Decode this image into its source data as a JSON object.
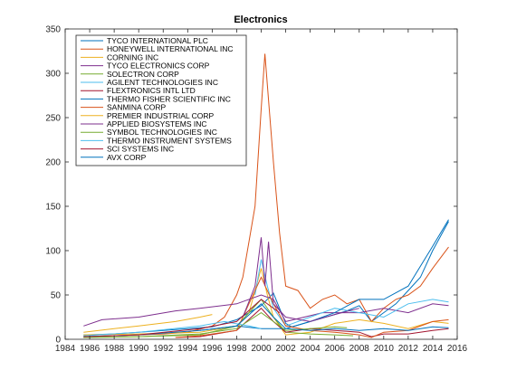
{
  "chart_data": {
    "type": "line",
    "title": "Electronics",
    "xlabel": "",
    "ylabel": "",
    "xlim": [
      1984,
      2016
    ],
    "ylim": [
      0,
      350
    ],
    "xticks": [
      1984,
      1986,
      1988,
      1990,
      1992,
      1994,
      1996,
      1998,
      2000,
      2002,
      2004,
      2006,
      2008,
      2010,
      2012,
      2014,
      2016
    ],
    "yticks": [
      0,
      50,
      100,
      150,
      200,
      250,
      300,
      350
    ],
    "grid": false,
    "legend_position": "top-left",
    "series": [
      {
        "name": "TYCO INTERNATIONAL PLC",
        "color": "#0072bd",
        "x": [
          1985.5,
          1988,
          1990,
          1992,
          1994,
          1996,
          1998,
          1999,
          2000,
          2001,
          2002,
          2002.5,
          2004,
          2006,
          2007,
          2008,
          2009,
          2010,
          2011,
          2012,
          2013,
          2014,
          2015.3
        ],
        "y": [
          5,
          6,
          8,
          10,
          12,
          14,
          22,
          30,
          38,
          52,
          18,
          14,
          20,
          28,
          32,
          38,
          20,
          30,
          40,
          55,
          70,
          100,
          133
        ]
      },
      {
        "name": "HONEYWELL INTERNATIONAL INC",
        "color": "#d95319",
        "x": [
          1985.5,
          1988,
          1990,
          1992,
          1994,
          1996,
          1997,
          1998,
          1998.5,
          1999,
          1999.5,
          2000,
          2000.3,
          2000.6,
          2001,
          2001.5,
          2002,
          2003,
          2004,
          2005,
          2006,
          2007,
          2008,
          2009,
          2010,
          2011,
          2012,
          2013,
          2014,
          2015.3
        ],
        "y": [
          3,
          4,
          5,
          6,
          8,
          15,
          25,
          50,
          70,
          110,
          150,
          260,
          322,
          270,
          200,
          120,
          60,
          55,
          35,
          45,
          50,
          40,
          45,
          20,
          35,
          45,
          50,
          60,
          80,
          104
        ]
      },
      {
        "name": "CORNING INC",
        "color": "#edb120",
        "x": [
          1985.5,
          1990,
          1995,
          1998,
          1999,
          2000,
          2000.5,
          2001,
          2002,
          2004,
          2006,
          2008,
          2010,
          2012,
          2014,
          2015.3
        ],
        "y": [
          5,
          6,
          8,
          15,
          30,
          80,
          50,
          25,
          5,
          8,
          18,
          22,
          18,
          12,
          20,
          18
        ]
      },
      {
        "name": "TYCO ELECTRONICS CORP",
        "color": "#7e2f8e",
        "x": [
          1985.5,
          1987,
          1990,
          1993,
          1995,
          1998,
          2000,
          2001,
          2002,
          2005,
          2008,
          2010,
          2012,
          2014,
          2015.3
        ],
        "y": [
          15,
          22,
          25,
          32,
          35,
          40,
          50,
          45,
          20,
          30,
          30,
          35,
          30,
          40,
          38
        ]
      },
      {
        "name": "SOLECTRON CORP",
        "color": "#77ac30",
        "x": [
          1985.5,
          1990,
          1995,
          1998,
          1999,
          2000,
          2001,
          2002,
          2004,
          2006,
          2007.5
        ],
        "y": [
          2,
          3,
          5,
          15,
          30,
          45,
          25,
          8,
          6,
          5,
          4
        ]
      },
      {
        "name": "AGILENT TECHNOLOGIES INC",
        "color": "#4dbeee",
        "x": [
          1999.5,
          2000,
          2000.5,
          2001,
          2002,
          2004,
          2006,
          2008,
          2010,
          2012,
          2014,
          2015.3
        ],
        "y": [
          50,
          90,
          60,
          35,
          15,
          25,
          35,
          30,
          25,
          40,
          45,
          42
        ]
      },
      {
        "name": "FLEXTRONICS INTL LTD",
        "color": "#a2142f",
        "x": [
          1993,
          1995,
          1998,
          2000,
          2001,
          2002,
          2004,
          2006,
          2008,
          2009,
          2010,
          2012,
          2014,
          2015.3
        ],
        "y": [
          2,
          3,
          10,
          35,
          20,
          8,
          12,
          10,
          8,
          3,
          6,
          6,
          10,
          12
        ]
      },
      {
        "name": "THERMO FISHER SCIENTIFIC INC",
        "color": "#0072bd",
        "x": [
          1985.5,
          1990,
          1995,
          1998,
          2000,
          2002,
          2004,
          2006,
          2008,
          2010,
          2012,
          2014,
          2015.3
        ],
        "y": [
          3,
          5,
          10,
          15,
          12,
          12,
          20,
          30,
          45,
          45,
          60,
          105,
          135
        ]
      },
      {
        "name": "SANMINA CORP",
        "color": "#d95319",
        "x": [
          1993,
          1995,
          1998,
          2000,
          2001,
          2002,
          2004,
          2006,
          2008,
          2009,
          2010,
          2012,
          2014,
          2015.3
        ],
        "y": [
          2,
          4,
          10,
          70,
          40,
          15,
          10,
          8,
          5,
          2,
          8,
          10,
          20,
          22
        ]
      },
      {
        "name": "PREMIER INDUSTRIAL CORP",
        "color": "#edb120",
        "x": [
          1985.5,
          1988,
          1990,
          1993,
          1995,
          1996
        ],
        "y": [
          8,
          12,
          15,
          20,
          25,
          28
        ]
      },
      {
        "name": "APPLIED BIOSYSTEMS INC",
        "color": "#7e2f8e",
        "x": [
          1998.5,
          1999.5,
          2000,
          2000.3,
          2000.6,
          2001,
          2002,
          2004,
          2006,
          2008
        ],
        "y": [
          25,
          60,
          115,
          60,
          110,
          40,
          25,
          20,
          28,
          35
        ]
      },
      {
        "name": "SYMBOL TECHNOLOGIES INC",
        "color": "#77ac30",
        "x": [
          1985.5,
          1990,
          1995,
          1998,
          2000,
          2001,
          2002,
          2004,
          2006,
          2007
        ],
        "y": [
          2,
          3,
          6,
          12,
          30,
          20,
          10,
          12,
          14,
          13
        ]
      },
      {
        "name": "THERMO INSTRUMENT SYSTEMS",
        "color": "#4dbeee",
        "x": [
          1985.5,
          1990,
          1995,
          1997,
          1999,
          2000
        ],
        "y": [
          4,
          8,
          15,
          20,
          15,
          12
        ]
      },
      {
        "name": "SCI SYSTEMS INC",
        "color": "#a2142f",
        "x": [
          1985.5,
          1990,
          1995,
          1998,
          2000,
          2001.5
        ],
        "y": [
          3,
          5,
          12,
          20,
          45,
          30
        ]
      },
      {
        "name": "AVX CORP",
        "color": "#0072bd",
        "x": [
          1995,
          1998,
          2000,
          2001,
          2002,
          2004,
          2006,
          2008,
          2010,
          2012,
          2014,
          2015.3
        ],
        "y": [
          10,
          15,
          40,
          25,
          12,
          10,
          12,
          10,
          12,
          10,
          14,
          13
        ]
      }
    ]
  }
}
